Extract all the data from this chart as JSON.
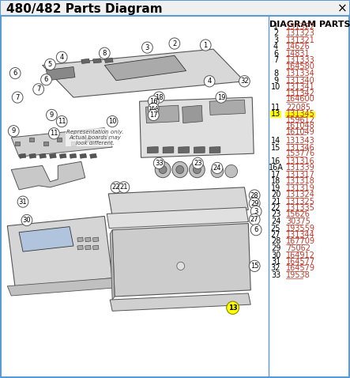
{
  "title": "480/482 Parts Diagram",
  "title_fontsize": 11,
  "title_fontweight": "bold",
  "close_x": "×",
  "bg_color": "#ffffff",
  "border_color": "#5b9bd5",
  "diagram_parts_title": "DIAGRAM PARTS",
  "parts": [
    {
      "num": "1",
      "codes": [
        "131322"
      ]
    },
    {
      "num": "2",
      "codes": [
        "131323"
      ]
    },
    {
      "num": "3",
      "codes": [
        "131321"
      ]
    },
    {
      "num": "4",
      "codes": [
        "14626"
      ]
    },
    {
      "num": "6",
      "codes": [
        "14831"
      ]
    },
    {
      "num": "7",
      "codes": [
        "131333",
        "164580"
      ]
    },
    {
      "num": "8",
      "codes": [
        "131334"
      ]
    },
    {
      "num": "9",
      "codes": [
        "131340"
      ]
    },
    {
      "num": "10",
      "codes": [
        "131341",
        "131342",
        "164600"
      ]
    },
    {
      "num": "11",
      "codes": [
        "22085"
      ]
    },
    {
      "num": "13",
      "codes": [
        "131345",
        "159612",
        "161048",
        "161049"
      ],
      "highlight": true
    },
    {
      "num": "14",
      "codes": [
        "131343"
      ]
    },
    {
      "num": "15",
      "codes": [
        "131346",
        "153776"
      ]
    },
    {
      "num": "16",
      "codes": [
        "131316"
      ]
    },
    {
      "num": "16A",
      "codes": [
        "131339"
      ]
    },
    {
      "num": "17",
      "codes": [
        "131317"
      ]
    },
    {
      "num": "18",
      "codes": [
        "131318"
      ]
    },
    {
      "num": "19",
      "codes": [
        "131319"
      ]
    },
    {
      "num": "20",
      "codes": [
        "131324"
      ]
    },
    {
      "num": "21",
      "codes": [
        "131325"
      ]
    },
    {
      "num": "22",
      "codes": [
        "131335"
      ]
    },
    {
      "num": "23",
      "codes": [
        "15626"
      ]
    },
    {
      "num": "24",
      "codes": [
        "30375"
      ]
    },
    {
      "num": "25",
      "codes": [
        "193559"
      ]
    },
    {
      "num": "27",
      "codes": [
        "131344"
      ]
    },
    {
      "num": "28",
      "codes": [
        "167709"
      ]
    },
    {
      "num": "29",
      "codes": [
        "75062"
      ]
    },
    {
      "num": "30",
      "codes": [
        "164912"
      ]
    },
    {
      "num": "31",
      "codes": [
        "164577"
      ]
    },
    {
      "num": "32",
      "codes": [
        "164579"
      ]
    },
    {
      "num": "33",
      "codes": [
        "19538"
      ]
    }
  ],
  "link_color": "#c0392b",
  "highlight_bg": "#ffff00",
  "num_color": "#000000",
  "parts_title_fontsize": 8,
  "parts_num_fontsize": 7,
  "parts_code_fontsize": 7,
  "annotation_text": "Representation only.\nActual boards may\nlook different.",
  "diagram_bg": "#ffffff"
}
